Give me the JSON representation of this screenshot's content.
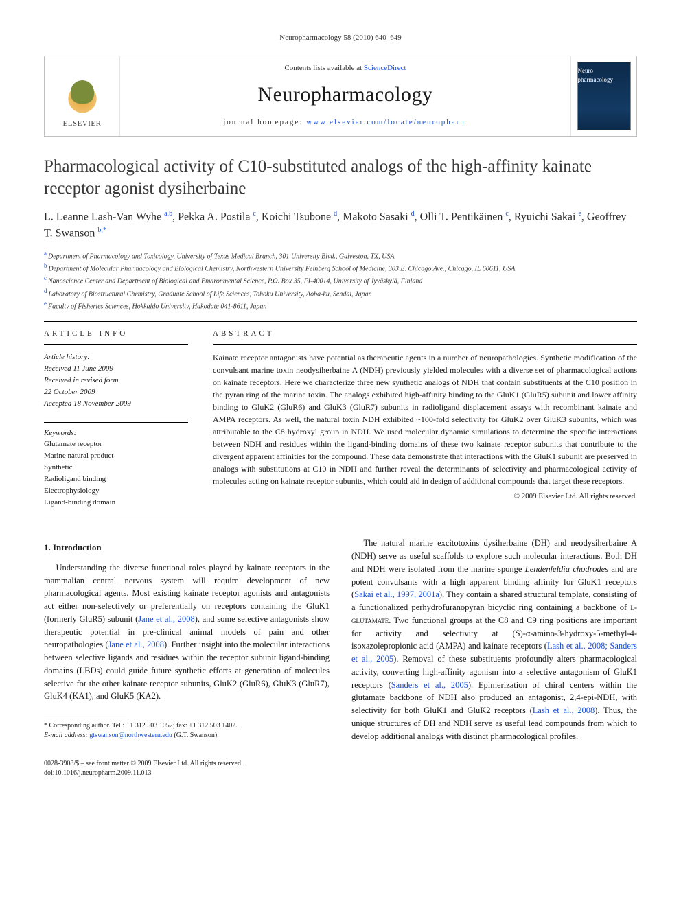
{
  "colors": {
    "text": "#1a1a1a",
    "link": "#1a4fd8",
    "rule": "#000000",
    "masthead_border": "#bfbfbf",
    "elsevier_orange": "#e8a33a",
    "cover_bg": "#0d2a4a"
  },
  "typography": {
    "body_family": "Georgia, 'Times New Roman', serif",
    "title_pt": 25,
    "journal_pt": 30,
    "body_pt": 12.5,
    "abstract_pt": 12,
    "footnote_pt": 10
  },
  "running_head": "Neuropharmacology 58 (2010) 640–649",
  "masthead": {
    "publisher": "ELSEVIER",
    "contents_prefix": "Contents lists available at ",
    "contents_link": "ScienceDirect",
    "journal": "Neuropharmacology",
    "homepage_prefix": "journal homepage: ",
    "homepage_url": "www.elsevier.com/locate/neuropharm",
    "cover_caption": "Neuro pharmacology"
  },
  "article": {
    "title": "Pharmacological activity of C10-substituted analogs of the high-affinity kainate receptor agonist dysiherbaine",
    "authors_html": "L. Leanne Lash-Van Wyhe <sup>a,b</sup>, Pekka A. Postila <sup>c</sup>, Koichi Tsubone <sup>d</sup>, Makoto Sasaki <sup>d</sup>, Olli T. Pentikäinen <sup>c</sup>, Ryuichi Sakai <sup>e</sup>, Geoffrey T. Swanson <sup>b,*</sup>",
    "affiliations": [
      {
        "key": "a",
        "text": "Department of Pharmacology and Toxicology, University of Texas Medical Branch, 301 University Blvd., Galveston, TX, USA"
      },
      {
        "key": "b",
        "text": "Department of Molecular Pharmacology and Biological Chemistry, Northwestern University Feinberg School of Medicine, 303 E. Chicago Ave., Chicago, IL 60611, USA"
      },
      {
        "key": "c",
        "text": "Nanoscience Center and Department of Biological and Environmental Science, P.O. Box 35, FI-40014, University of Jyväskylä, Finland"
      },
      {
        "key": "d",
        "text": "Laboratory of Biostructural Chemistry, Graduate School of Life Sciences, Tohoku University, Aoba-ku, Sendai, Japan"
      },
      {
        "key": "e",
        "text": "Faculty of Fisheries Sciences, Hokkaido University, Hakodate 041-8611, Japan"
      }
    ]
  },
  "article_info": {
    "heading": "ARTICLE INFO",
    "history_label": "Article history:",
    "received": "Received 11 June 2009",
    "revised_label": "Received in revised form",
    "revised_date": "22 October 2009",
    "accepted": "Accepted 18 November 2009",
    "keywords_label": "Keywords:",
    "keywords": [
      "Glutamate receptor",
      "Marine natural product",
      "Synthetic",
      "Radioligand binding",
      "Electrophysiology",
      "Ligand-binding domain"
    ]
  },
  "abstract": {
    "heading": "ABSTRACT",
    "text": "Kainate receptor antagonists have potential as therapeutic agents in a number of neuropathologies. Synthetic modification of the convulsant marine toxin neodysiherbaine A (NDH) previously yielded molecules with a diverse set of pharmacological actions on kainate receptors. Here we characterize three new synthetic analogs of NDH that contain substituents at the C10 position in the pyran ring of the marine toxin. The analogs exhibited high-affinity binding to the GluK1 (GluR5) subunit and lower affinity binding to GluK2 (GluR6) and GluK3 (GluR7) subunits in radioligand displacement assays with recombinant kainate and AMPA receptors. As well, the natural toxin NDH exhibited ~100-fold selectivity for GluK2 over GluK3 subunits, which was attributable to the C8 hydroxyl group in NDH. We used molecular dynamic simulations to determine the specific interactions between NDH and residues within the ligand-binding domains of these two kainate receptor subunits that contribute to the divergent apparent affinities for the compound. These data demonstrate that interactions with the GluK1 subunit are preserved in analogs with substitutions at C10 in NDH and further reveal the determinants of selectivity and pharmacological activity of molecules acting on kainate receptor subunits, which could aid in design of additional compounds that target these receptors.",
    "copyright": "© 2009 Elsevier Ltd. All rights reserved."
  },
  "body": {
    "intro_heading": "1. Introduction",
    "p1a": "Understanding the diverse functional roles played by kainate receptors in the mammalian central nervous system will require development of new pharmacological agents. Most existing kainate receptor agonists and antagonists act either non-selectively or preferentially on receptors containing the GluK1 (formerly GluR5) subunit (",
    "cite1": "Jane et al., 2008",
    "p1b": "), and some selective antagonists show therapeutic potential in pre-clinical animal models of pain and other neuropathologies (",
    "cite2": "Jane et al., 2008",
    "p1c": "). Further insight into the molecular interactions between selective ligands and residues within the receptor subunit ligand-binding domains (LBDs) could guide future synthetic efforts at generation of molecules selective for the other kainate receptor subunits, GluK2 (GluR6), GluK3 (GluR7), GluK4 (KA1), and GluK5 (KA2).",
    "p2a": "The natural marine excitotoxins dysiherbaine (DH) and neodysiherbaine A (NDH) serve as useful scaffolds to explore such molecular interactions. Both DH and NDH were isolated from the marine sponge ",
    "species": "Lendenfeldia chodrodes",
    "p2b": " and are potent convulsants with a high apparent binding affinity for GluK1 receptors (",
    "cite3": "Sakai et al., 1997, 2001a",
    "p2c": "). They contain a shared structural template, consisting of a functionalized perhydrofuranopyran bicyclic ring containing a backbone of ",
    "lglu": "l-glutamate",
    "p2d": ". Two functional groups at the C8 and C9 ring positions are important for activity and selectivity at (S)-α-amino-3-hydroxy-5-methyl-4-isoxazolepropionic acid (AMPA) and kainate receptors (",
    "cite4": "Lash et al., 2008; Sanders et al., 2005",
    "p2e": "). Removal of these substituents profoundly alters pharmacological activity, converting high-affinity agonism into a selective antagonism of GluK1 receptors (",
    "cite5": "Sanders et al., 2005",
    "p2f": "). Epimerization of chiral centers within the glutamate backbone of NDH also produced an antagonist, 2,4-epi-NDH, with selectivity for both GluK1 and GluK2 receptors (",
    "cite6": "Lash et al., 2008",
    "p2g": "). Thus, the unique structures of DH and NDH serve as useful lead compounds from which to develop additional analogs with distinct pharmacological profiles."
  },
  "footnote": {
    "corr_label": "* Corresponding author. Tel.: +1 312 503 1052; fax: +1 312 503 1402.",
    "email_label": "E-mail address:",
    "email": "gtswanson@northwestern.edu",
    "email_suffix": " (G.T. Swanson)."
  },
  "footer": {
    "line1": "0028-3908/$ – see front matter © 2009 Elsevier Ltd. All rights reserved.",
    "line2": "doi:10.1016/j.neuropharm.2009.11.013"
  }
}
